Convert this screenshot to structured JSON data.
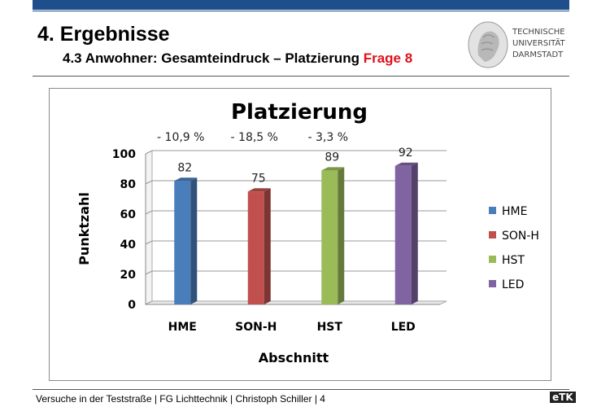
{
  "header": {
    "title": "4. Ergebnisse",
    "subtitle": "4.3 Anwohner: Gesamteindruck – Platzierung",
    "subtitle_highlight": "Frage 8",
    "logo_lines": [
      "TECHNISCHE",
      "UNIVERSITÄT",
      "DARMSTADT"
    ]
  },
  "footer": {
    "text": "Versuche in der Teststraße | FG Lichttechnik | Christoph Schiller | 4",
    "logo": "eTK"
  },
  "colors": {
    "bar": "#1f4e8c",
    "accent": "#e0101a"
  },
  "chart_data": {
    "type": "bar",
    "title": "Platzierung",
    "xlabel": "Abschnitt",
    "ylabel": "Punktzahl",
    "ylim": [
      0,
      100
    ],
    "yticks": [
      0,
      20,
      40,
      60,
      80,
      100
    ],
    "grid": true,
    "legend_position": "right",
    "categories": [
      "HME",
      "SON-H",
      "HST",
      "LED"
    ],
    "values": [
      82,
      75,
      89,
      92
    ],
    "colors": [
      "#4a7ebb",
      "#c0504d",
      "#9bbb59",
      "#8064a2"
    ],
    "annotations": [
      "- 10,9 %",
      "- 18,5 %",
      "- 3,3 %",
      ""
    ]
  }
}
